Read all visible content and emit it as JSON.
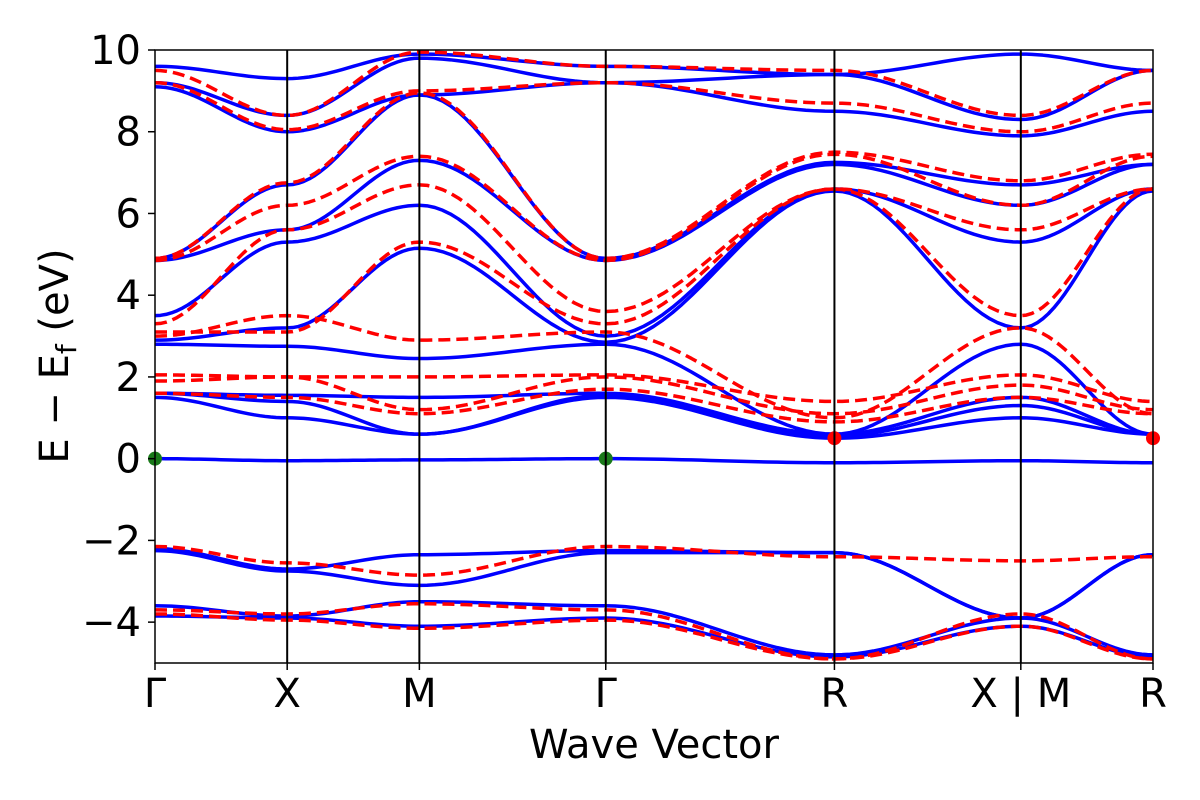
{
  "chart_data": {
    "type": "line",
    "title": "",
    "xlabel": "Wave Vector",
    "ylabel_parts": {
      "main": "E − E",
      "sub": "f",
      "unit": " (eV)"
    },
    "ylim": [
      -5,
      10
    ],
    "yticks": [
      -4,
      -2,
      0,
      2,
      4,
      6,
      8,
      10
    ],
    "ytick_labels": [
      "−4",
      "−2",
      "0",
      "2",
      "4",
      "6",
      "8",
      "10"
    ],
    "kpath": [
      {
        "label": "Γ",
        "x": 0.0
      },
      {
        "label": "X",
        "x": 1.0
      },
      {
        "label": "M",
        "x": 2.0
      },
      {
        "label": "Γ",
        "x": 3.41
      },
      {
        "label": "R",
        "x": 5.14
      },
      {
        "label": "X | M",
        "x": 6.55
      },
      {
        "label": "R",
        "x": 7.55
      }
    ],
    "xlim": [
      0,
      7.55
    ],
    "grid": false,
    "legend": "none",
    "colors": {
      "series_a": "#0000ff",
      "series_b": "#ff0000",
      "marker": "#1a7a1a",
      "axis": "#000000"
    },
    "series": [
      {
        "style": "solid",
        "color": "#0000ff",
        "bands": [
          {
            "x": [
              0,
              1,
              2,
              3.41,
              5.14,
              6.55,
              7.55
            ],
            "y": [
              0.0,
              -0.05,
              -0.03,
              0.0,
              -0.1,
              -0.05,
              -0.1
            ]
          },
          {
            "x": [
              0,
              1,
              2,
              3.41,
              5.14,
              6.55,
              7.55
            ],
            "y": [
              1.5,
              1.0,
              0.6,
              1.5,
              0.5,
              1.0,
              0.6
            ]
          },
          {
            "x": [
              0,
              1,
              2,
              3.41,
              5.14,
              6.55,
              7.55
            ],
            "y": [
              1.6,
              1.4,
              0.6,
              1.55,
              0.55,
              1.3,
              0.6
            ]
          },
          {
            "x": [
              0,
              1,
              2,
              3.41,
              5.14,
              6.55,
              7.55
            ],
            "y": [
              1.6,
              1.55,
              1.5,
              1.6,
              0.6,
              1.5,
              0.6
            ]
          },
          {
            "x": [
              0,
              1,
              2,
              3.41,
              5.14,
              6.55,
              7.55
            ],
            "y": [
              2.8,
              2.75,
              2.45,
              2.8,
              0.6,
              2.8,
              0.6
            ]
          },
          {
            "x": [
              0,
              1,
              2,
              3.41,
              5.14,
              6.55,
              7.55
            ],
            "y": [
              2.9,
              3.2,
              5.15,
              2.85,
              6.55,
              3.2,
              6.55
            ]
          },
          {
            "x": [
              0,
              1,
              2,
              3.41,
              5.14,
              6.55,
              7.55
            ],
            "y": [
              3.5,
              5.3,
              6.2,
              3.0,
              6.6,
              5.3,
              6.6
            ]
          },
          {
            "x": [
              0,
              1,
              2,
              3.41,
              5.14,
              6.55,
              7.55
            ],
            "y": [
              4.85,
              5.6,
              7.3,
              4.85,
              7.2,
              6.2,
              7.2
            ]
          },
          {
            "x": [
              0,
              1,
              2,
              3.41,
              5.14,
              6.55,
              7.55
            ],
            "y": [
              4.9,
              6.7,
              8.9,
              4.9,
              7.25,
              6.7,
              7.2
            ]
          },
          {
            "x": [
              0,
              1,
              2,
              3.41,
              5.14,
              6.55,
              7.55
            ],
            "y": [
              9.1,
              8.0,
              8.9,
              9.2,
              8.5,
              7.9,
              8.5
            ]
          },
          {
            "x": [
              0,
              1,
              2,
              3.41,
              5.14,
              6.55,
              7.55
            ],
            "y": [
              9.2,
              8.4,
              9.8,
              9.2,
              9.4,
              8.3,
              9.5
            ]
          },
          {
            "x": [
              0,
              1,
              2,
              3.41,
              5.14,
              6.55,
              7.55
            ],
            "y": [
              9.6,
              9.3,
              9.9,
              9.6,
              9.4,
              9.9,
              9.5
            ]
          },
          {
            "x": [
              0,
              1,
              2,
              3.41,
              5.14,
              6.55,
              7.55
            ],
            "y": [
              -2.2,
              -2.7,
              -2.35,
              -2.25,
              -2.3,
              -3.9,
              -2.35
            ]
          },
          {
            "x": [
              0,
              1,
              2,
              3.41,
              5.14,
              6.55,
              7.55
            ],
            "y": [
              -2.25,
              -2.75,
              -3.1,
              -2.3,
              -2.3,
              -3.9,
              -2.35
            ]
          },
          {
            "x": [
              0,
              1,
              2,
              3.41,
              5.14,
              6.55,
              7.55
            ],
            "y": [
              -3.6,
              -3.85,
              -3.5,
              -3.6,
              -4.8,
              -3.9,
              -4.8
            ]
          },
          {
            "x": [
              0,
              1,
              2,
              3.41,
              5.14,
              6.55,
              7.55
            ],
            "y": [
              -3.85,
              -3.9,
              -4.1,
              -3.9,
              -4.85,
              -4.1,
              -4.85
            ]
          }
        ]
      },
      {
        "style": "dashed",
        "color": "#ff0000",
        "bands": [
          {
            "x": [
              0,
              1,
              2,
              3.41,
              5.14,
              6.55,
              7.55
            ],
            "y": [
              1.6,
              1.5,
              1.1,
              1.7,
              0.9,
              1.5,
              1.1
            ]
          },
          {
            "x": [
              0,
              1,
              2,
              3.41,
              5.14,
              6.55,
              7.55
            ],
            "y": [
              1.9,
              2.0,
              1.2,
              2.0,
              1.1,
              1.8,
              1.2
            ]
          },
          {
            "x": [
              0,
              1,
              2,
              3.41,
              5.14,
              6.55,
              7.55
            ],
            "y": [
              2.05,
              2.0,
              2.0,
              2.05,
              1.4,
              2.05,
              1.4
            ]
          },
          {
            "x": [
              0,
              1,
              2,
              3.41,
              5.14,
              6.55,
              7.55
            ],
            "y": [
              3.0,
              3.5,
              2.9,
              3.1,
              1.0,
              3.2,
              1.1
            ]
          },
          {
            "x": [
              0,
              1,
              2,
              3.41,
              5.14,
              6.55,
              7.55
            ],
            "y": [
              3.1,
              3.1,
              5.3,
              3.3,
              6.6,
              3.5,
              6.6
            ]
          },
          {
            "x": [
              0,
              1,
              2,
              3.41,
              5.14,
              6.55,
              7.55
            ],
            "y": [
              3.3,
              5.6,
              6.7,
              3.6,
              6.6,
              5.6,
              6.6
            ]
          },
          {
            "x": [
              0,
              1,
              2,
              3.41,
              5.14,
              6.55,
              7.55
            ],
            "y": [
              4.85,
              6.2,
              7.4,
              4.85,
              7.45,
              6.2,
              7.4
            ]
          },
          {
            "x": [
              0,
              1,
              2,
              3.41,
              5.14,
              6.55,
              7.55
            ],
            "y": [
              4.9,
              6.75,
              8.95,
              4.9,
              7.5,
              6.8,
              7.45
            ]
          },
          {
            "x": [
              0,
              1,
              2,
              3.41,
              5.14,
              6.55,
              7.55
            ],
            "y": [
              9.2,
              8.05,
              9.0,
              9.2,
              8.7,
              8.0,
              8.7
            ]
          },
          {
            "x": [
              0,
              1,
              2,
              3.41,
              5.14,
              6.55,
              7.55
            ],
            "y": [
              9.5,
              8.4,
              9.95,
              9.6,
              9.5,
              8.4,
              9.5
            ]
          },
          {
            "x": [
              0,
              1,
              2,
              3.41,
              5.14,
              6.55,
              7.55
            ],
            "y": [
              -2.15,
              -2.55,
              -2.85,
              -2.15,
              -2.4,
              -2.5,
              -2.4
            ]
          },
          {
            "x": [
              0,
              1,
              2,
              3.41,
              5.14,
              6.55,
              7.55
            ],
            "y": [
              -3.7,
              -3.8,
              -3.55,
              -3.7,
              -4.9,
              -3.8,
              -4.9
            ]
          },
          {
            "x": [
              0,
              1,
              2,
              3.41,
              5.14,
              6.55,
              7.55
            ],
            "y": [
              -3.8,
              -3.95,
              -4.15,
              -3.95,
              -4.9,
              -4.1,
              -4.9
            ]
          }
        ]
      }
    ],
    "markers": [
      {
        "x": 0.0,
        "y": 0.0,
        "color": "#1a7a1a"
      },
      {
        "x": 3.41,
        "y": 0.0,
        "color": "#1a7a1a"
      },
      {
        "x": 5.14,
        "y": 0.5,
        "color": "#ff0000"
      },
      {
        "x": 7.55,
        "y": 0.5,
        "color": "#ff0000"
      }
    ]
  }
}
